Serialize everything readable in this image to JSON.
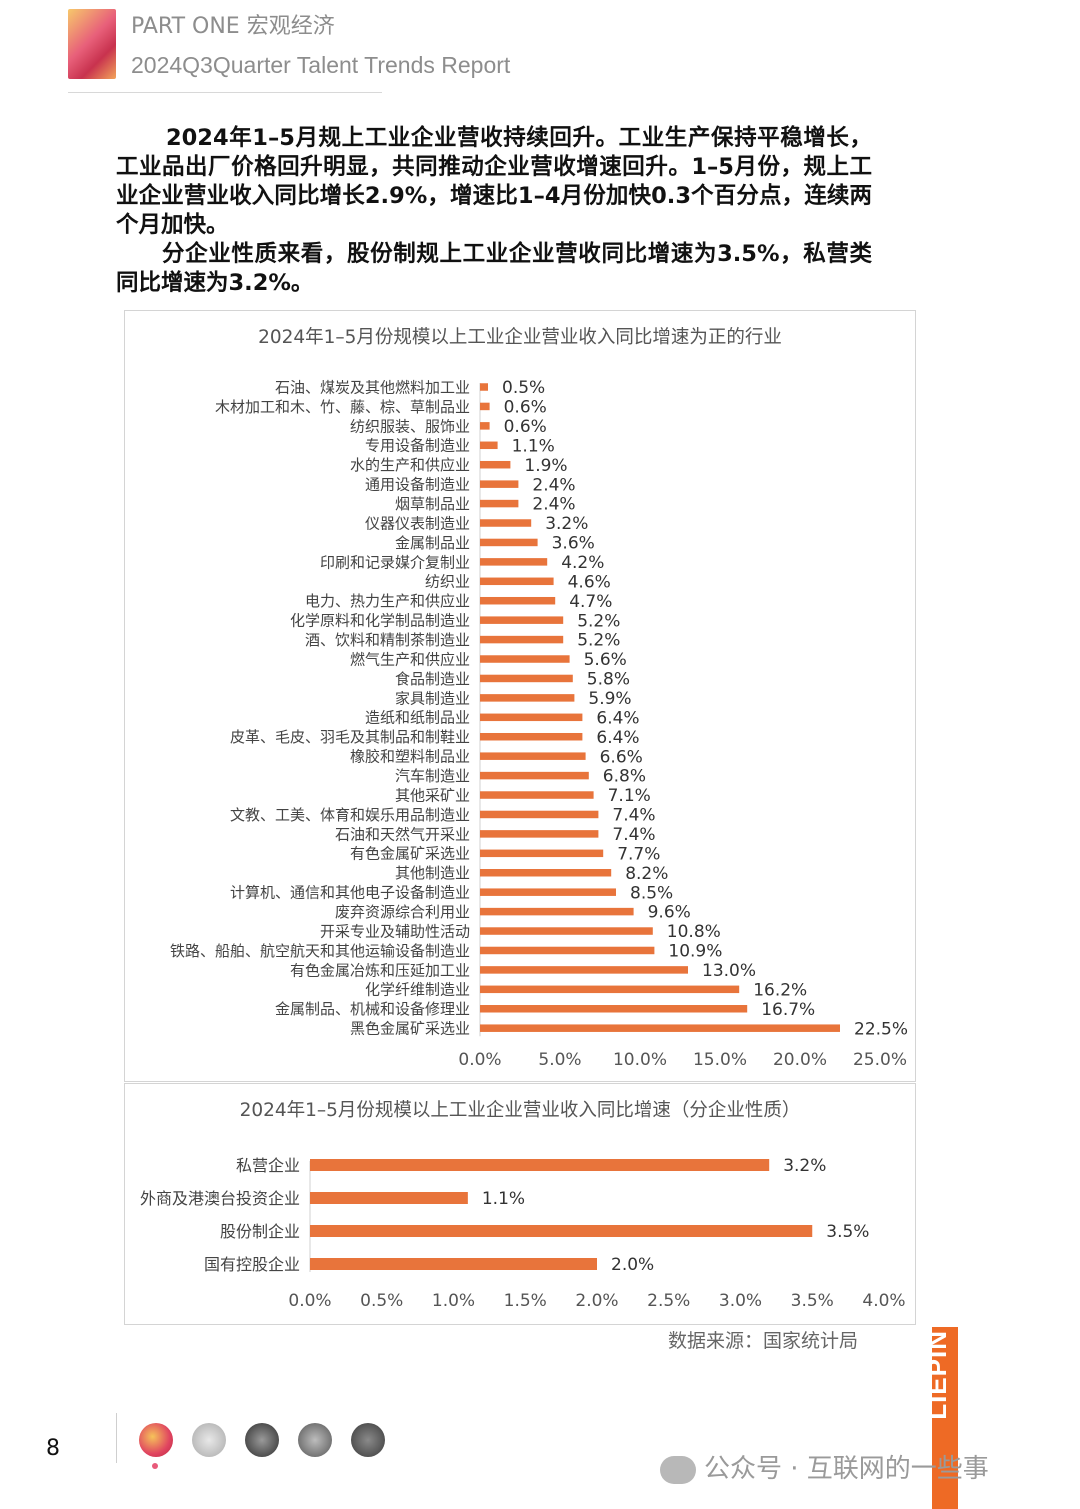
{
  "header": {
    "part": "PART ONE  宏观经济",
    "report": "2024Q3Quarter Talent Trends Report"
  },
  "paragraphs": {
    "p1": "2024年1–5月规上工业企业营收持续回升。工业生产保持平稳增长，工业品出厂价格回升明显，共同推动企业营收增速回升。1–5月份，规上工业企业营业收入同比增长2.9%，增速比1–4月份加快0.3个百分点，连续两个月加快。",
    "p2": "分企业性质来看，股份制规上工业企业营收同比增速为3.5%，私营类同比增速为3.2%。"
  },
  "chart_data": [
    {
      "type": "bar",
      "orientation": "horizontal",
      "title": "2024年1–5月份规模以上工业企业营业收入同比增速为正的行业",
      "categories": [
        "石油、煤炭及其他燃料加工业",
        "木材加工和木、竹、藤、棕、草制品业",
        "纺织服装、服饰业",
        "专用设备制造业",
        "水的生产和供应业",
        "通用设备制造业",
        "烟草制品业",
        "仪器仪表制造业",
        "金属制品业",
        "印刷和记录媒介复制业",
        "纺织业",
        "电力、热力生产和供应业",
        "化学原料和化学制品制造业",
        "酒、饮料和精制茶制造业",
        "燃气生产和供应业",
        "食品制造业",
        "家具制造业",
        "造纸和纸制品业",
        "皮革、毛皮、羽毛及其制品和制鞋业",
        "橡胶和塑料制品业",
        "汽车制造业",
        "其他采矿业",
        "文教、工美、体育和娱乐用品制造业",
        "石油和天然气开采业",
        "有色金属矿采选业",
        "其他制造业",
        "计算机、通信和其他电子设备制造业",
        "废弃资源综合利用业",
        "开采专业及辅助性活动",
        "铁路、船舶、航空航天和其他运输设备制造业",
        "有色金属冶炼和压延加工业",
        "化学纤维制造业",
        "金属制品、机械和设备修理业",
        "黑色金属矿采选业"
      ],
      "values": [
        0.5,
        0.6,
        0.6,
        1.1,
        1.9,
        2.4,
        2.4,
        3.2,
        3.6,
        4.2,
        4.6,
        4.7,
        5.2,
        5.2,
        5.6,
        5.8,
        5.9,
        6.4,
        6.4,
        6.6,
        6.8,
        7.1,
        7.4,
        7.4,
        7.7,
        8.2,
        8.5,
        9.6,
        10.8,
        10.9,
        13.0,
        16.2,
        16.7,
        22.5
      ],
      "value_labels": [
        "0.5%",
        "0.6%",
        "0.6%",
        "1.1%",
        "1.9%",
        "2.4%",
        "2.4%",
        "3.2%",
        "3.6%",
        "4.2%",
        "4.6%",
        "4.7%",
        "5.2%",
        "5.2%",
        "5.6%",
        "5.8%",
        "5.9%",
        "6.4%",
        "6.4%",
        "6.6%",
        "6.8%",
        "7.1%",
        "7.4%",
        "7.4%",
        "7.7%",
        "8.2%",
        "8.5%",
        "9.6%",
        "10.8%",
        "10.9%",
        "13.0%",
        "16.2%",
        "16.7%",
        "22.5%"
      ],
      "xlim": [
        0,
        25
      ],
      "xticks": [
        "0.0%",
        "5.0%",
        "10.0%",
        "15.0%",
        "20.0%",
        "25.0%"
      ],
      "color": "#e8743b",
      "grid": false
    },
    {
      "type": "bar",
      "orientation": "horizontal",
      "title": "2024年1–5月份规模以上工业企业营业收入同比增速（分企业性质）",
      "categories": [
        "私营企业",
        "外商及港澳台投资企业",
        "股份制企业",
        "国有控股企业"
      ],
      "values": [
        3.2,
        1.1,
        3.5,
        2.0
      ],
      "value_labels": [
        "3.2%",
        "1.1%",
        "3.5%",
        "2.0%"
      ],
      "xlim": [
        0,
        4
      ],
      "xticks": [
        "0.0%",
        "0.5%",
        "1.0%",
        "1.5%",
        "2.0%",
        "2.5%",
        "3.0%",
        "3.5%",
        "4.0%"
      ],
      "color": "#e8743b",
      "grid": false
    }
  ],
  "source": "数据来源：国家统计局",
  "brand": "LIEPIN",
  "page_number": "8",
  "watermark": "公众号 · 互联网的一些事"
}
